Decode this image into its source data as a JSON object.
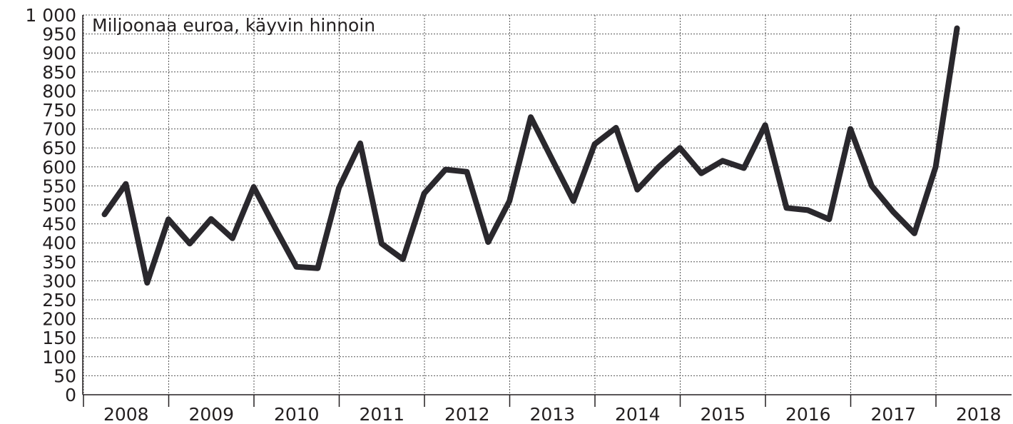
{
  "chart_data": {
    "type": "line",
    "title": "Miljoonaa euroa, käyvin hinnoin",
    "xlabel": "",
    "ylabel": "",
    "ylim": [
      0,
      1000
    ],
    "y_ticks": [
      "0",
      "50",
      "100",
      "150",
      "200",
      "250",
      "300",
      "350",
      "400",
      "450",
      "500",
      "550",
      "600",
      "650",
      "700",
      "750",
      "800",
      "850",
      "900",
      "950",
      "1 000"
    ],
    "year_labels": [
      "2008",
      "2009",
      "2010",
      "2011",
      "2012",
      "2013",
      "2014",
      "2015",
      "2016",
      "2017",
      "2018"
    ],
    "quarters_per_year": 4,
    "grid": true,
    "colors": {
      "line": "#2a282d",
      "text": "#231f20",
      "grid": "#555555"
    },
    "series": [
      {
        "values": [
          475,
          555,
          295,
          462,
          398,
          463,
          412,
          547,
          440,
          337,
          333,
          545,
          662,
          398,
          357,
          530,
          593,
          587,
          402,
          510,
          731,
          620,
          510,
          660,
          703,
          540,
          600,
          650,
          583,
          616,
          597,
          710,
          492,
          486,
          462,
          700,
          550,
          482,
          425,
          600,
          965
        ]
      }
    ]
  }
}
